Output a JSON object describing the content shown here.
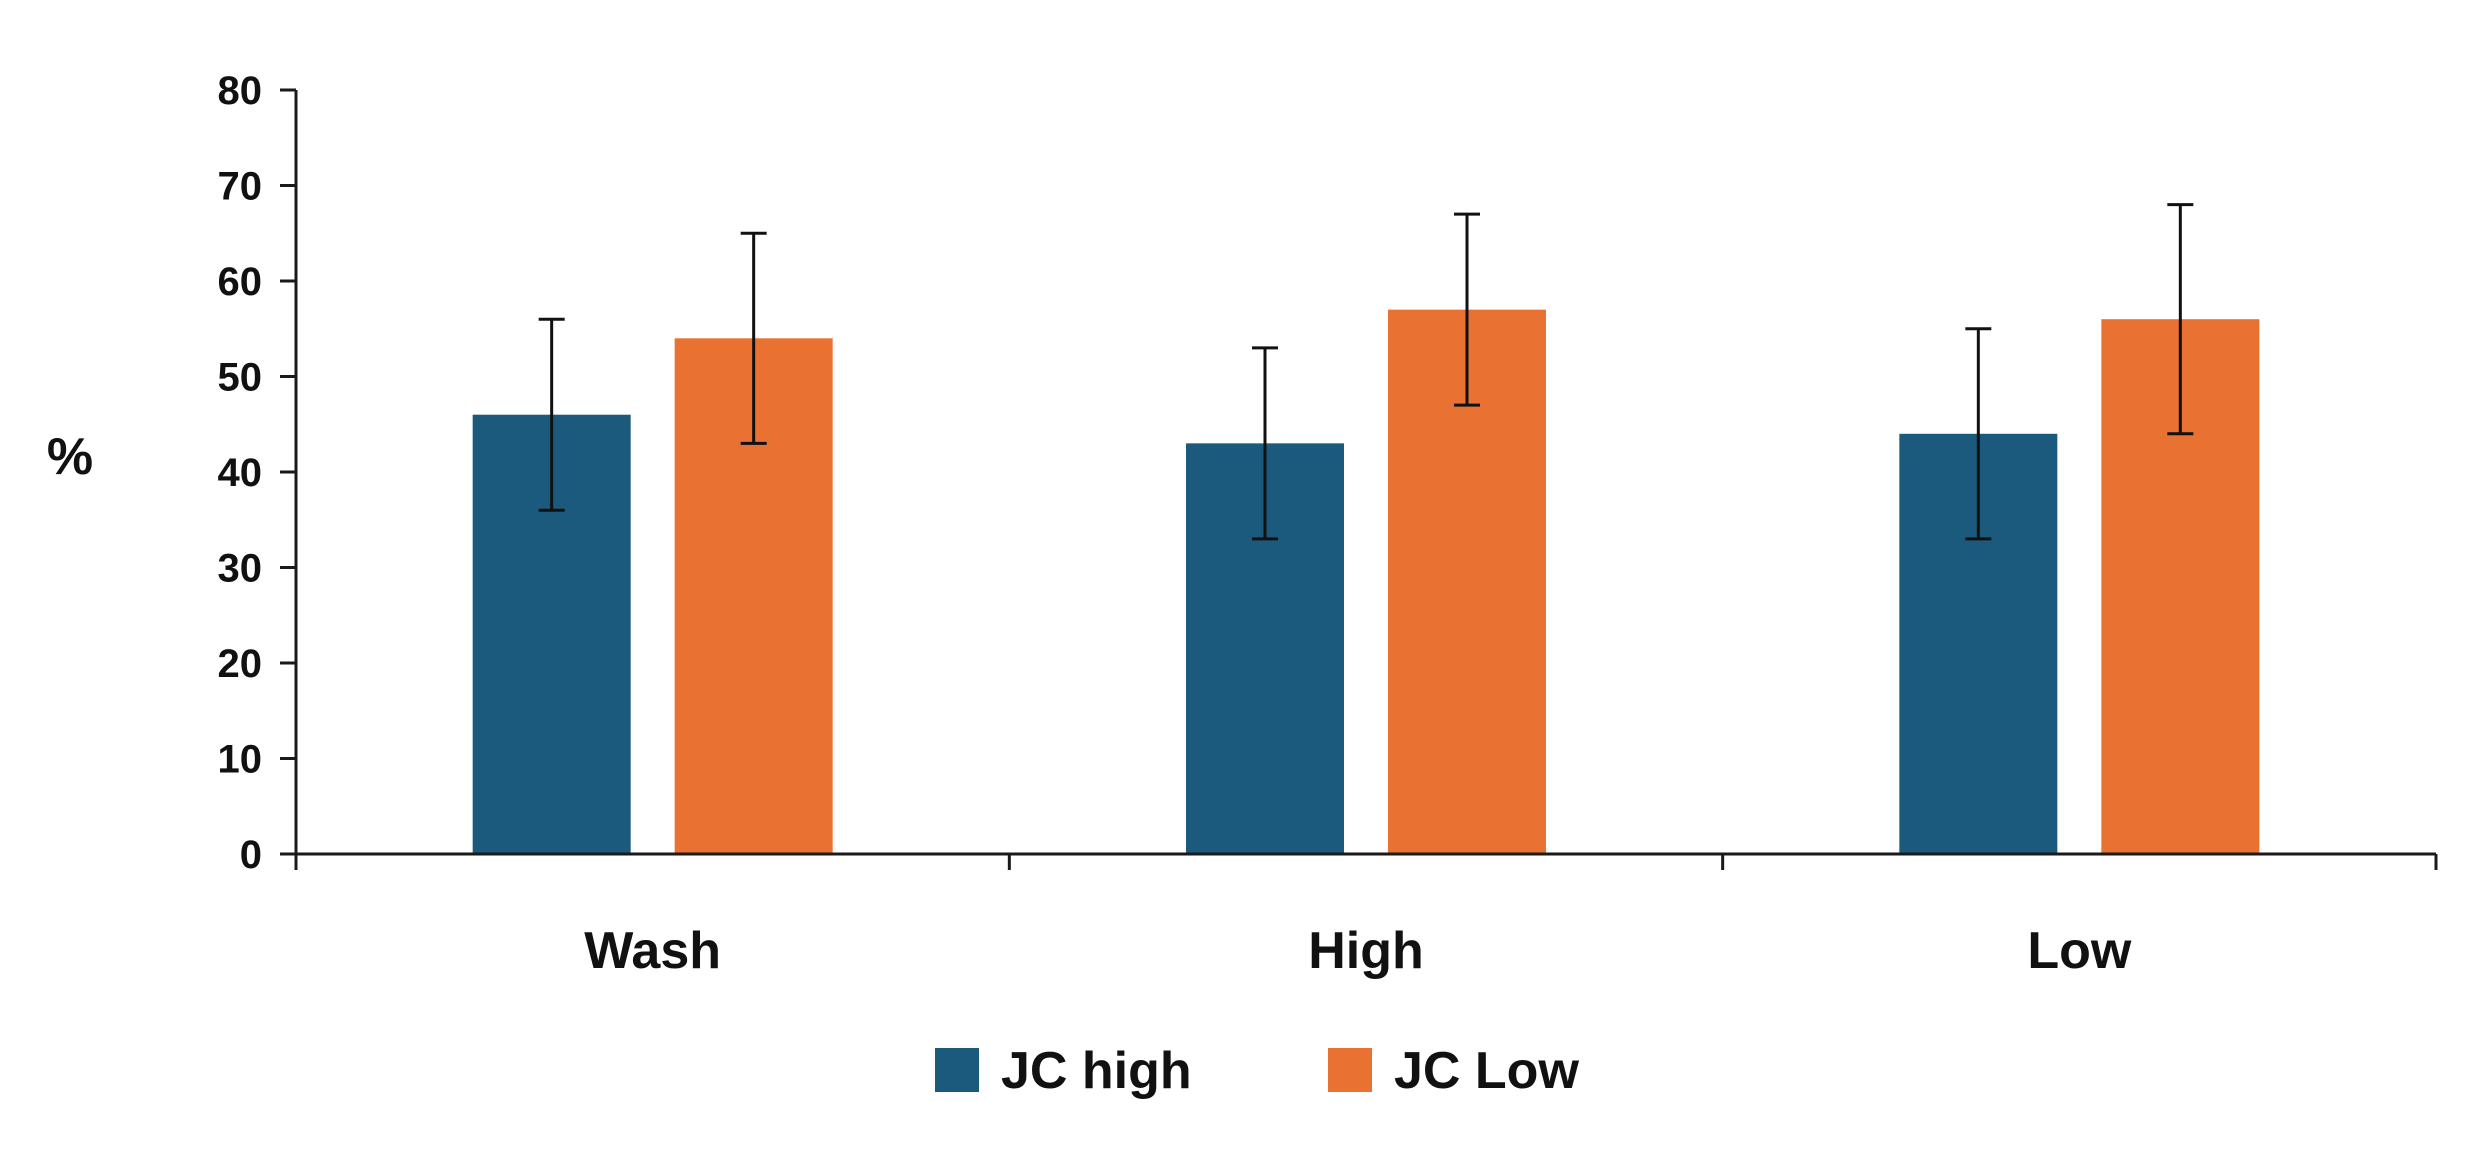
{
  "chart_data": {
    "type": "bar",
    "title": "",
    "xlabel": "",
    "ylabel": "%",
    "ylim": [
      0,
      80
    ],
    "yticks": [
      0,
      10,
      20,
      30,
      40,
      50,
      60,
      70,
      80
    ],
    "grid": false,
    "legend_position": "bottom-center",
    "categories": [
      "Wash",
      "High",
      "Low"
    ],
    "series": [
      {
        "name": "JC high",
        "color": "#1C5A7D",
        "values": [
          46,
          43,
          44
        ],
        "error_low": [
          36,
          33,
          33
        ],
        "error_high": [
          56,
          53,
          55
        ]
      },
      {
        "name": "JC Low",
        "color": "#E97132",
        "values": [
          54,
          57,
          56
        ],
        "error_low": [
          43,
          47,
          44
        ],
        "error_high": [
          65,
          67,
          68
        ]
      }
    ]
  }
}
